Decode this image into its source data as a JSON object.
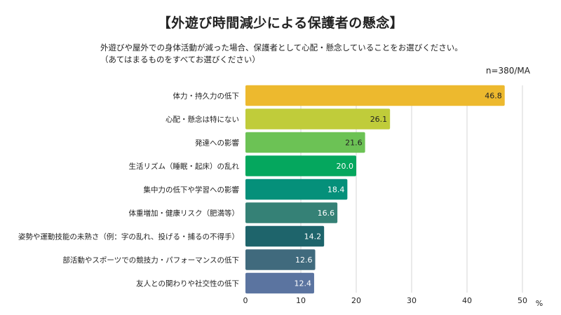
{
  "header": {
    "title": "【外遊び時間減少による保護者の懸念】",
    "question": "外遊びや屋外での身体活動が減った場合、保護者として心配・懸念していることをお選びください。",
    "note": "（あてはまるものをすべてお選びください）",
    "sample": "n=380/MA"
  },
  "chart_data": {
    "type": "bar",
    "orientation": "horizontal",
    "title": "【外遊び時間減少による保護者の懸念】",
    "xlabel": "%",
    "xlim": [
      0,
      50
    ],
    "xticks": [
      0,
      10,
      20,
      30,
      40,
      50
    ],
    "grid": true,
    "categories": [
      "体力・持久力の低下",
      "心配・懸念は特にない",
      "発達への影響",
      "生活リズム（睡眠・起床）の乱れ",
      "集中力の低下や学習への影響",
      "体重増加・健康リスク（肥満等）",
      "姿勢や運動技能の未熟さ（例：字の乱れ、投げる・捕るの不得手）",
      "部活動やスポーツでの競技力・パフォーマンスの低下",
      "友人との関わりや社交性の低下"
    ],
    "values": [
      46.8,
      26.1,
      21.6,
      20.0,
      18.4,
      16.6,
      14.2,
      12.6,
      12.4
    ],
    "colors": [
      "#EDB92E",
      "#C0CC3A",
      "#6CC255",
      "#05A75E",
      "#05907A",
      "#358176",
      "#1E646B",
      "#406A7D",
      "#5B74A0"
    ],
    "label_colors": [
      "#222222",
      "#222222",
      "#222222",
      "#ffffff",
      "#ffffff",
      "#ffffff",
      "#ffffff",
      "#ffffff",
      "#ffffff"
    ]
  }
}
